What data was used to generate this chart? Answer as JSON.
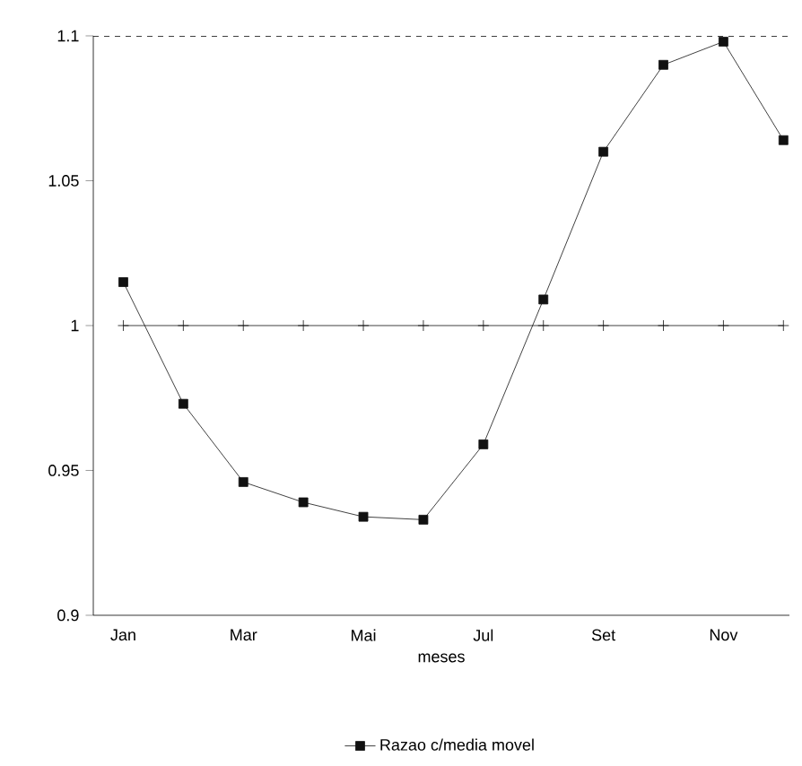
{
  "chart_data": {
    "type": "line",
    "xlabel": "meses",
    "categories": [
      "Jan",
      null,
      "Mar",
      null,
      "Mai",
      null,
      "Jul",
      null,
      "Set",
      null,
      "Nov",
      null
    ],
    "series": [
      {
        "name": "Razao c/media movel",
        "color": "#111111",
        "marker": "square",
        "values": [
          1.015,
          0.973,
          0.946,
          0.939,
          0.934,
          0.933,
          0.959,
          1.009,
          1.06,
          1.09,
          1.098,
          1.064
        ]
      },
      {
        "color": "#111111",
        "marker": "cross",
        "values": [
          1,
          1,
          1,
          1,
          1,
          1,
          1,
          1,
          1,
          1,
          1,
          1
        ]
      }
    ],
    "ylim": [
      0.9,
      1.1
    ],
    "yticks": [
      0.9,
      0.95,
      1,
      1.05,
      1.1
    ],
    "legend": "bottom",
    "grid": false
  }
}
